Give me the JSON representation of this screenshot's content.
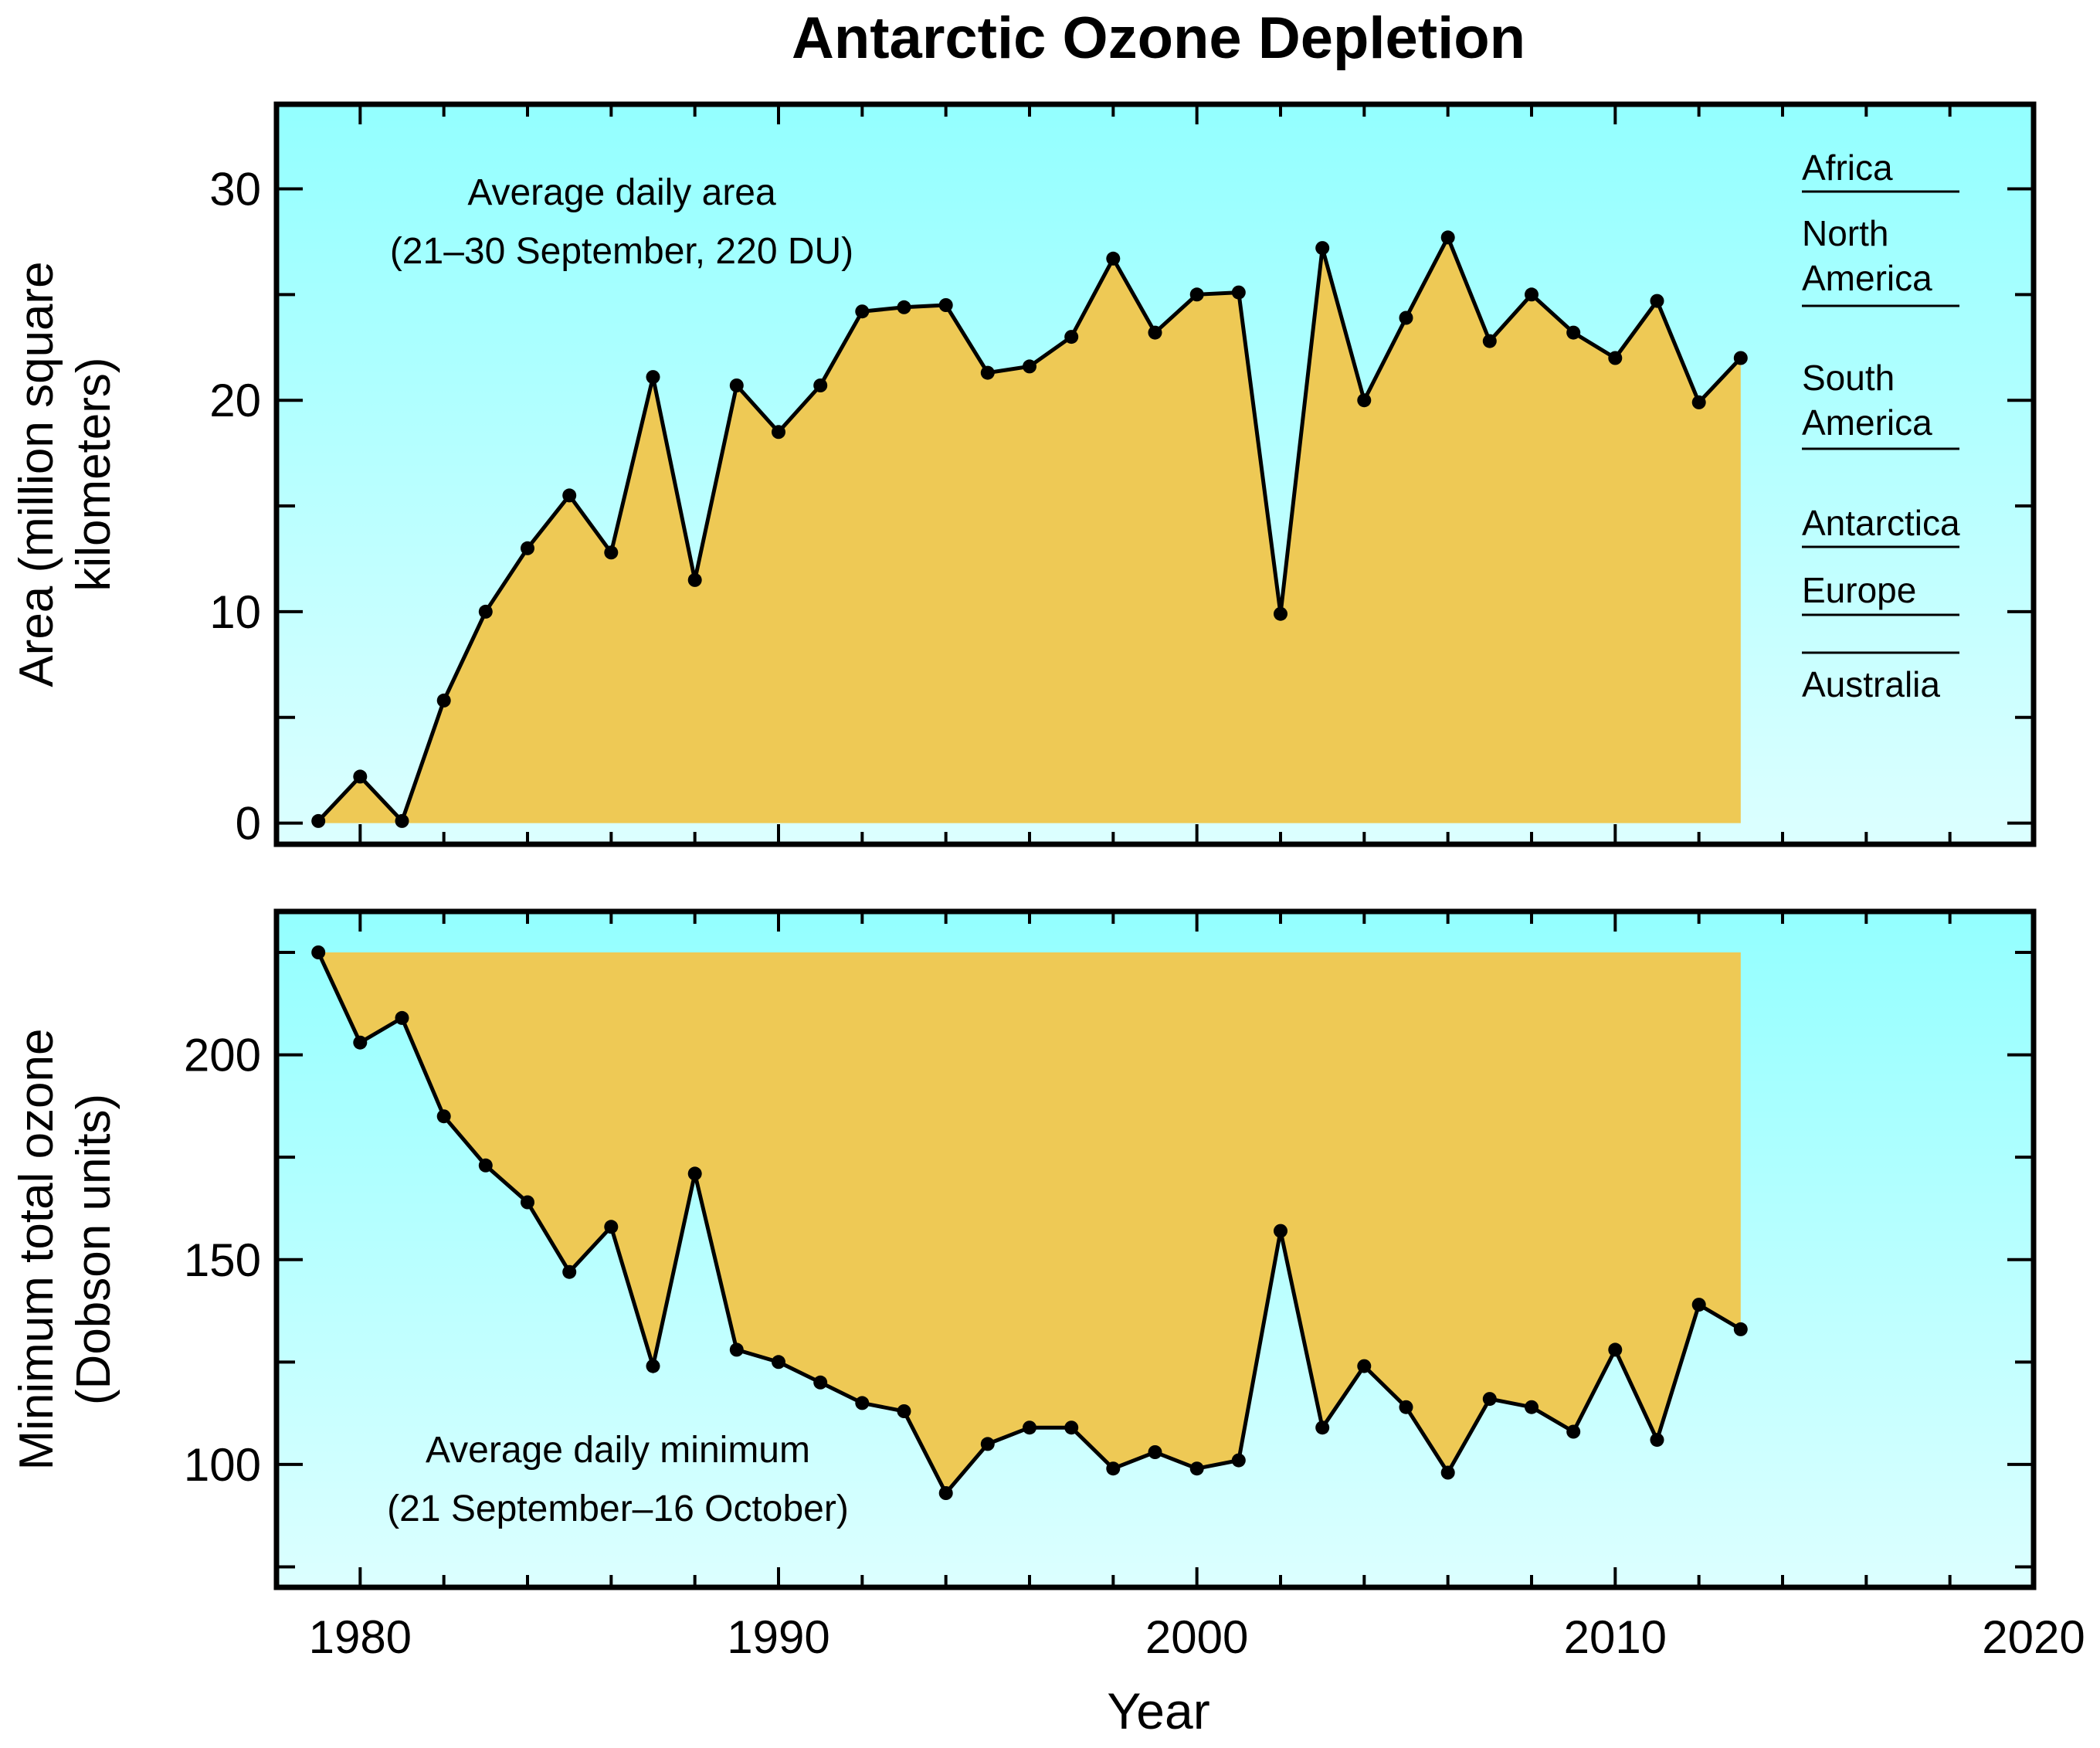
{
  "chart_data": {
    "title": "Antarctic Ozone Depletion",
    "xlabel": "Year",
    "xlim": [
      1978,
      2020
    ],
    "x_ticks": [
      1980,
      1990,
      2000,
      2010,
      2020
    ],
    "x": [
      1979,
      1980,
      1981,
      1982,
      1983,
      1984,
      1985,
      1986,
      1987,
      1988,
      1989,
      1990,
      1991,
      1992,
      1993,
      1994,
      1995,
      1996,
      1997,
      1998,
      1999,
      2000,
      2001,
      2002,
      2003,
      2004,
      2005,
      2006,
      2007,
      2008,
      2009,
      2010,
      2011,
      2012,
      2013
    ],
    "panels": [
      {
        "type": "area",
        "ylabel": "Area (million square kilometers)",
        "ylim": [
          -1,
          34
        ],
        "y_ticks": [
          0,
          10,
          20,
          30
        ],
        "annotation": [
          "Average daily area",
          "(21–30 September, 220 DU)"
        ],
        "fill_baseline": 0,
        "fill_color": "#eec955",
        "values": [
          0.1,
          2.2,
          0.1,
          5.8,
          10.0,
          13.0,
          15.5,
          12.8,
          21.1,
          11.5,
          20.7,
          18.5,
          20.7,
          24.2,
          24.4,
          24.5,
          21.3,
          21.6,
          23.0,
          26.7,
          23.2,
          25.0,
          25.1,
          9.9,
          27.2,
          20.0,
          23.9,
          27.7,
          22.8,
          25.0,
          23.2,
          22.0,
          24.7,
          19.9,
          22.0
        ],
        "reference_labels": [
          "Africa",
          "North America",
          "South America",
          "Antarctica",
          "Europe",
          "Australia"
        ]
      },
      {
        "type": "area",
        "ylabel": "Minimum total ozone (Dobson units)",
        "ylim": [
          70,
          235
        ],
        "y_ticks": [
          100,
          150,
          200
        ],
        "annotation": [
          "Average daily minimum",
          "(21 September–16 October)"
        ],
        "fill_top": 225,
        "fill_color": "#eec955",
        "values": [
          225,
          203,
          209,
          185,
          173,
          164,
          147,
          158,
          124,
          171,
          128,
          125,
          120,
          115,
          113,
          93,
          105,
          109,
          109,
          99,
          103,
          99,
          101,
          157,
          109,
          124,
          114,
          98,
          116,
          114,
          108,
          128,
          106,
          139,
          133
        ]
      }
    ],
    "colors": {
      "background_top": "#93ffff",
      "background_bottom": "#dcffff",
      "fill": "#eec955",
      "line": "#000000"
    }
  }
}
